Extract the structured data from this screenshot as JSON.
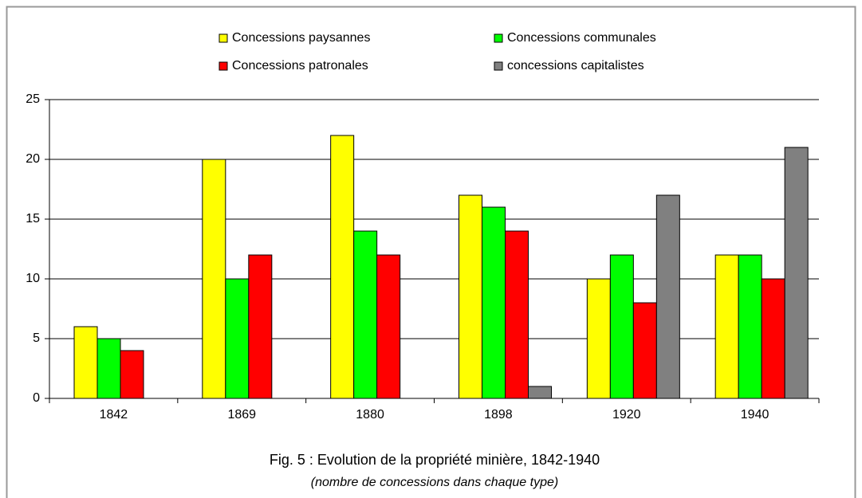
{
  "chart_data": {
    "type": "bar",
    "title": "Fig. 5 : Evolution de la propriété minière, 1842-1940",
    "subtitle": "(nombre de concessions dans chaque type)",
    "categories": [
      "1842",
      "1869",
      "1880",
      "1898",
      "1920",
      "1940"
    ],
    "series": [
      {
        "name": "Concessions paysannes",
        "color": "#ffff00",
        "values": [
          6,
          20,
          22,
          17,
          10,
          12
        ]
      },
      {
        "name": "Concessions communales",
        "color": "#00ff00",
        "values": [
          5,
          10,
          14,
          16,
          12,
          12
        ]
      },
      {
        "name": "Concessions patronales",
        "color": "#ff0000",
        "values": [
          4,
          12,
          12,
          14,
          8,
          10
        ]
      },
      {
        "name": "concessions capitalistes",
        "color": "#808080",
        "values": [
          0,
          0,
          0,
          1,
          17,
          21
        ]
      }
    ],
    "ylim": [
      0,
      25
    ],
    "yticks": [
      0,
      5,
      10,
      15,
      20,
      25
    ],
    "grid": true
  }
}
